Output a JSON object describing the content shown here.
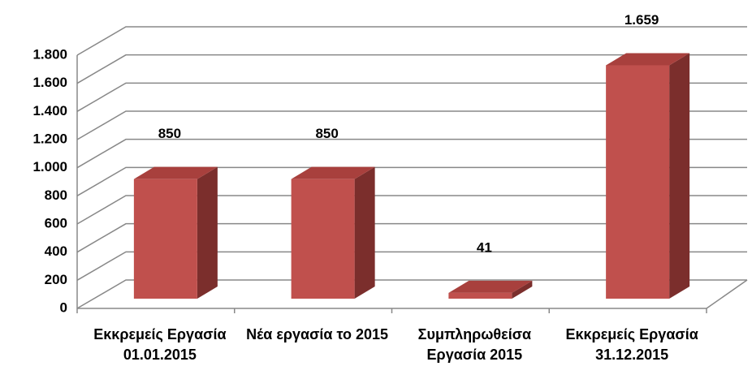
{
  "chart_data": {
    "type": "bar3d",
    "categories": [
      "Εκκρεμείς Εργασία 01.01.2015",
      "Νέα εργασία το 2015",
      "Συμπληρωθείσα Εργασία 2015",
      "Εκκρεμείς Εργασία 31.12.2015"
    ],
    "values": [
      850,
      850,
      41,
      1659
    ],
    "value_labels": [
      "850",
      "850",
      "41",
      "1.659"
    ],
    "color": "#c0504d",
    "ylim": [
      0,
      1800
    ],
    "yticks": [
      0,
      200,
      400,
      600,
      800,
      {
        "value": 1000,
        "label": "1.000"
      },
      {
        "value": 1200,
        "label": "1.200"
      },
      {
        "value": 1400,
        "label": "1.400"
      },
      {
        "value": 1600,
        "label": "1.600"
      },
      {
        "value": 1800,
        "label": "1.800"
      }
    ],
    "grid": true
  }
}
